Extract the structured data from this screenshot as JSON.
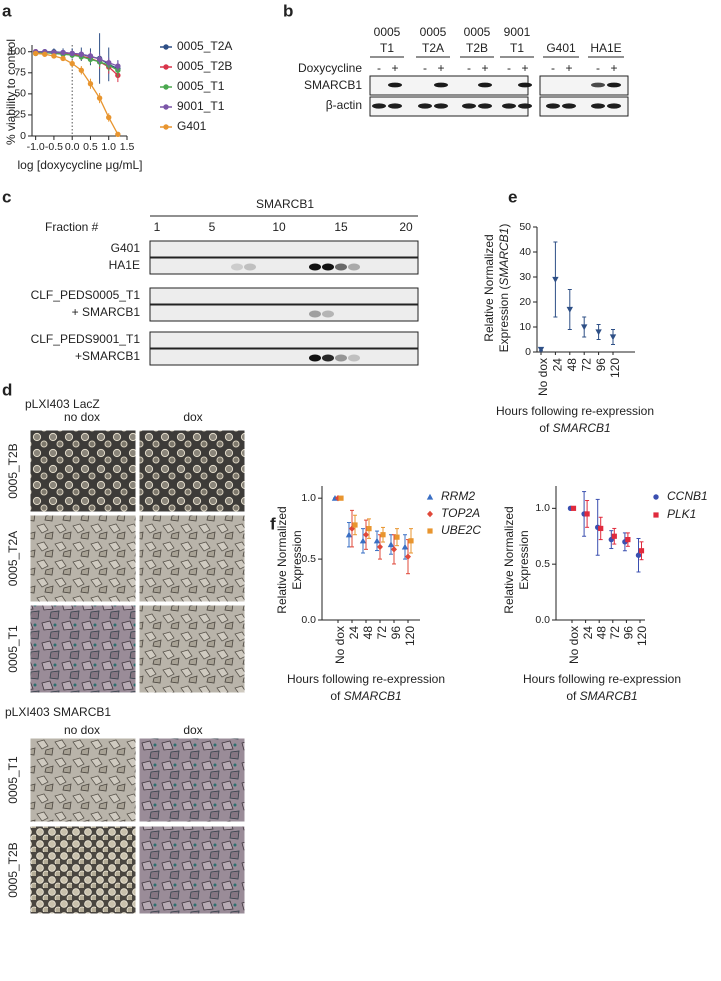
{
  "panel_letters": [
    "a",
    "b",
    "c",
    "d",
    "e",
    "f"
  ],
  "chart_data": [
    {
      "type": "line",
      "ylabel": "% viability to control",
      "xlabel": "log [doxycycline μg/mL]",
      "x": [
        -1,
        -0.75,
        -0.5,
        -0.25,
        0,
        0.25,
        0.5,
        0.75,
        1,
        1.25
      ],
      "xlim": [
        -1.1,
        1.5
      ],
      "xticks": [
        {
          "value": -1,
          "label": "-1.0"
        },
        -0.5,
        {
          "value": 0,
          "label": "0.0"
        },
        0.5,
        {
          "value": 1,
          "label": "1.0"
        },
        1.5
      ],
      "ylim": [
        0,
        108
      ],
      "yticks": [
        0,
        25,
        50,
        75,
        100
      ],
      "vline": 0,
      "series": [
        {
          "name": "0005_T2A",
          "color": "#2e4f86",
          "values": [
            100,
            100,
            100,
            99,
            98,
            97,
            94,
            92,
            85,
            80
          ],
          "errors": [
            3,
            3,
            4,
            5,
            6,
            8,
            10,
            30,
            20,
            10
          ]
        },
        {
          "name": "0005_T2B",
          "color": "#d9344a",
          "values": [
            100,
            99,
            99,
            98,
            97,
            95,
            92,
            88,
            82,
            72
          ],
          "errors": [
            2,
            2,
            3,
            3,
            4,
            5,
            6,
            8,
            8,
            8
          ]
        },
        {
          "name": "0005_T1",
          "color": "#4aa84f",
          "values": [
            98,
            99,
            98,
            97,
            96,
            94,
            91,
            88,
            84,
            78
          ],
          "errors": [
            2,
            2,
            2,
            3,
            3,
            4,
            5,
            6,
            7,
            8
          ]
        },
        {
          "name": "9001_T1",
          "color": "#7b56a8",
          "values": [
            100,
            100,
            99,
            99,
            98,
            97,
            95,
            91,
            87,
            83
          ],
          "errors": [
            2,
            2,
            2,
            2,
            3,
            4,
            5,
            6,
            6,
            6
          ]
        },
        {
          "name": "G401",
          "color": "#e8952f",
          "values": [
            98,
            97,
            95,
            92,
            86,
            78,
            62,
            45,
            22,
            2
          ],
          "errors": [
            2,
            2,
            3,
            3,
            4,
            5,
            6,
            6,
            5,
            2
          ]
        }
      ]
    },
    {
      "type": "dot",
      "color": "#2e4f86",
      "marker": "triangle-down",
      "ylabel": {
        "line1": "Relative Normalized",
        "line2_pre": "Expression (",
        "line2_gene": "SMARCB1",
        "line2_post": ")"
      },
      "xlabel": {
        "line1": "Hours following re-expression",
        "line2_pre": "of ",
        "line2_gene": "SMARCB1"
      },
      "categories": [
        "No dox",
        "24",
        "48",
        "72",
        "96",
        "120"
      ],
      "values": [
        1,
        29,
        17,
        10,
        8,
        6
      ],
      "errors": [
        0.5,
        15,
        8,
        4,
        3,
        3
      ],
      "ylim": [
        0,
        50
      ],
      "yticks": [
        0,
        10,
        20,
        30,
        40,
        50
      ]
    },
    {
      "type": "dot",
      "ylabel": {
        "line1": "Relative Normalized",
        "line2": "Expression"
      },
      "xlabel": {
        "line1": "Hours following re-expression",
        "line2_pre": "of ",
        "line2_gene": "SMARCB1"
      },
      "categories": [
        "No dox",
        "24",
        "48",
        "72",
        "96",
        "120"
      ],
      "ylim": [
        0,
        1.1
      ],
      "yticks": [
        {
          "value": 0,
          "label": "0.0"
        },
        0.5,
        {
          "value": 1,
          "label": "1.0"
        }
      ],
      "series": [
        {
          "name": "RRM2",
          "color": "#3a6fc4",
          "marker": "triangle",
          "values": [
            1,
            0.7,
            0.65,
            0.65,
            0.62,
            0.6
          ],
          "errors": [
            0,
            0.1,
            0.1,
            0.08,
            0.08,
            0.1
          ]
        },
        {
          "name": "TOP2A",
          "color": "#e0483a",
          "marker": "diamond",
          "values": [
            1,
            0.75,
            0.7,
            0.6,
            0.58,
            0.52
          ],
          "errors": [
            0,
            0.15,
            0.12,
            0.1,
            0.12,
            0.14
          ]
        },
        {
          "name": "UBE2C",
          "color": "#e8952f",
          "marker": "square",
          "values": [
            1,
            0.78,
            0.75,
            0.7,
            0.68,
            0.65
          ],
          "errors": [
            0,
            0.08,
            0.08,
            0.06,
            0.07,
            0.1
          ]
        }
      ]
    },
    {
      "type": "dot",
      "ylabel": {
        "line1": "Relative Normalized",
        "line2": "Expression"
      },
      "xlabel": {
        "line1": "Hours following re-expression",
        "line2_pre": "of ",
        "line2_gene": "SMARCB1"
      },
      "categories": [
        "No dox",
        "24",
        "48",
        "72",
        "96",
        "120"
      ],
      "ylim": [
        0,
        1.2
      ],
      "yticks": [
        {
          "value": 0,
          "label": "0.0"
        },
        0.5,
        {
          "value": 1,
          "label": "1.0"
        }
      ],
      "series": [
        {
          "name": "CCNB1",
          "color": "#3a4fb0",
          "marker": "circle",
          "values": [
            1,
            0.95,
            0.83,
            0.72,
            0.7,
            0.58
          ],
          "errors": [
            0,
            0.2,
            0.25,
            0.08,
            0.08,
            0.15
          ]
        },
        {
          "name": "PLK1",
          "color": "#e02a3c",
          "marker": "square",
          "values": [
            1,
            0.95,
            0.82,
            0.75,
            0.72,
            0.62
          ],
          "errors": [
            0,
            0.12,
            0.1,
            0.07,
            0.06,
            0.08
          ]
        }
      ]
    }
  ],
  "blot": {
    "groups": [
      {
        "line1": "0005",
        "line2": "T1"
      },
      {
        "line1": "0005",
        "line2": "T2A"
      },
      {
        "line1": "0005",
        "line2": "T2B"
      },
      {
        "line1": "9001",
        "line2": "T1"
      }
    ],
    "right_groups": [
      "G401",
      "HA1E"
    ],
    "treatment": "Doxycycline",
    "dox_states": [
      "-",
      "+"
    ],
    "rows": [
      "SMARCB1",
      "β-actin"
    ]
  },
  "fractionation": {
    "title": "SMARCB1",
    "fraction_label": "Fraction #",
    "fraction_ticks": [
      "1",
      "5",
      "10",
      "15",
      "20"
    ],
    "rows": [
      "G401",
      "HA1E",
      "CLF_PEDS0005_T1",
      "+ SMARCB1",
      "CLF_PEDS9001_T1",
      "+SMARCB1"
    ]
  },
  "micrographs": {
    "top": {
      "title": "pLXI403 LacZ",
      "columns": [
        "no dox",
        "dox"
      ],
      "rows": [
        "0005_T2B",
        "0005_T2A",
        "0005_T1"
      ]
    },
    "bottom": {
      "title": "pLXI403 SMARCB1",
      "columns": [
        "no dox",
        "dox"
      ],
      "rows": [
        "0005_T1",
        "0005_T2B"
      ]
    }
  }
}
